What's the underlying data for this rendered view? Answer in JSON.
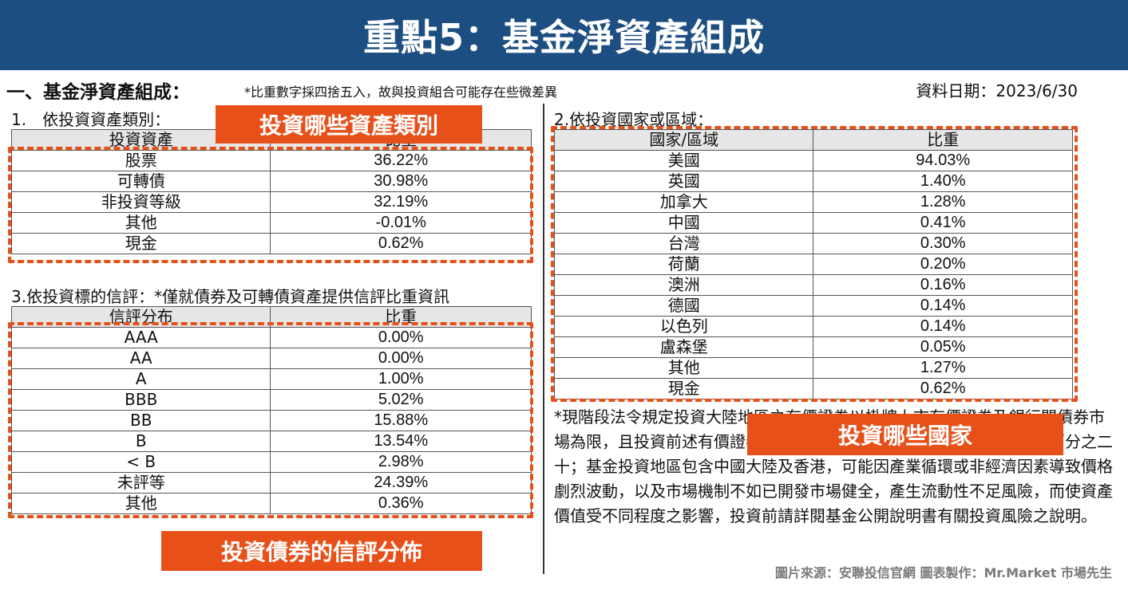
{
  "banner": {
    "title": "重點5：基金淨資產組成"
  },
  "section": {
    "heading": "一、基金淨資產組成：",
    "note": "*比重數字採四捨五入，故與投資組合可能存在些微差異",
    "date": "資料日期：2023/6/30"
  },
  "asset_class": {
    "subhead": "1.　依投資資產類別：",
    "header": [
      "投資資產",
      "比重"
    ],
    "rows": [
      [
        "股票",
        "36.22%"
      ],
      [
        "可轉債",
        "30.98%"
      ],
      [
        "非投資等級",
        "32.19%"
      ],
      [
        "其他",
        "-0.01%"
      ],
      [
        "現金",
        "0.62%"
      ]
    ],
    "callout": "投資哪些資產類別"
  },
  "credit_rating": {
    "subhead": "3.依投資標的信評：*僅就債券及可轉債資產提供信評比重資訊",
    "header": [
      "信評分布",
      "比重"
    ],
    "rows": [
      [
        "AAA",
        "0.00%"
      ],
      [
        "AA",
        "0.00%"
      ],
      [
        "A",
        "1.00%"
      ],
      [
        "BBB",
        "5.02%"
      ],
      [
        "BB",
        "15.88%"
      ],
      [
        "B",
        "13.54%"
      ],
      [
        "< B",
        "2.98%"
      ],
      [
        "未評等",
        "24.39%"
      ],
      [
        "其他",
        "0.36%"
      ]
    ],
    "callout": "投資債券的信評分佈"
  },
  "country": {
    "subhead": "2.依投資國家或區域：",
    "header": [
      "國家/區域",
      "比重"
    ],
    "rows": [
      [
        "美國",
        "94.03%"
      ],
      [
        "英國",
        "1.40%"
      ],
      [
        "加拿大",
        "1.28%"
      ],
      [
        "中國",
        "0.41%"
      ],
      [
        "台灣",
        "0.30%"
      ],
      [
        "荷蘭",
        "0.20%"
      ],
      [
        "澳洲",
        "0.16%"
      ],
      [
        "德國",
        "0.14%"
      ],
      [
        "以色列",
        "0.14%"
      ],
      [
        "盧森堡",
        "0.05%"
      ],
      [
        "其他",
        "1.27%"
      ],
      [
        "現金",
        "0.62%"
      ]
    ],
    "callout": "投資哪些國家"
  },
  "disclaimer": "*現階段法令規定投資大陸地區之有價證券以掛牌上市有價證券及銀行間債券市場為限，且投資前述有價證券總金額不得超過該境外基金淨資產價值之百分之二十；基金投資地區包含中國大陸及香港，可能因產業循環或非經濟因素導致價格劇烈波動，以及市場機制不如已開發市場健全，產生流動性不足風險，而使資產價值受不同程度之影響，投資前請詳閱基金公開說明書有關投資風險之說明。",
  "credit": "圖片來源：安聯投信官網 圖表製作：Mr.Market 市場先生",
  "colors": {
    "banner": "#1d4e82",
    "accent": "#e8501a",
    "header_fill": "#e6e6e6"
  }
}
